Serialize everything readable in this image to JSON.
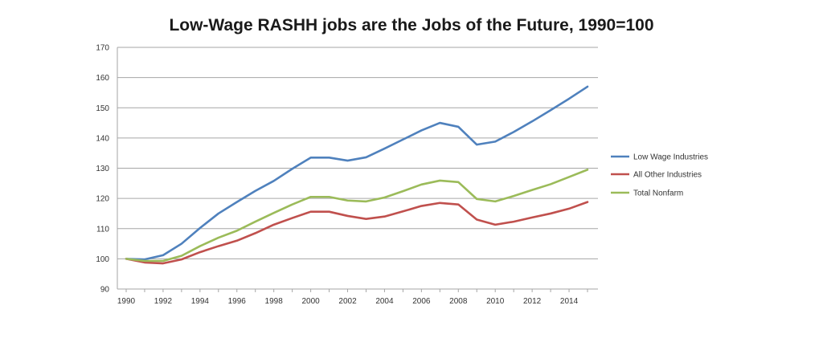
{
  "chart_data": {
    "type": "line",
    "title": "Low-Wage RASHH jobs are the Jobs of the Future, 1990=100",
    "xlabel": "",
    "ylabel": "",
    "ylim": [
      90,
      170
    ],
    "xlim": [
      1990,
      2015
    ],
    "y_ticks": [
      "90",
      "100",
      "110",
      "120",
      "130",
      "140",
      "150",
      "160",
      "170"
    ],
    "x_ticks": [
      "1990",
      "1992",
      "1994",
      "1996",
      "1998",
      "2000",
      "2002",
      "2004",
      "2006",
      "2008",
      "2010",
      "2012",
      "2014"
    ],
    "grid": "horizontal",
    "legend_position": "right",
    "x": [
      1990,
      1991,
      1992,
      1993,
      1994,
      1995,
      1996,
      1997,
      1998,
      1999,
      2000,
      2001,
      2002,
      2003,
      2004,
      2005,
      2006,
      2007,
      2008,
      2009,
      2010,
      2011,
      2012,
      2013,
      2014,
      2015
    ],
    "series": [
      {
        "name": "Low Wage Industries",
        "color": "#4f81bd",
        "values": [
          100,
          99.8,
          101.2,
          105,
          110.2,
          115,
          118.8,
          122.5,
          125.8,
          129.8,
          133.5,
          133.5,
          132.5,
          133.6,
          136.5,
          139.5,
          142.5,
          145,
          143.7,
          137.8,
          138.8,
          142,
          145.5,
          149.2,
          153,
          157
        ]
      },
      {
        "name": "All Other Industries",
        "color": "#c0504d",
        "values": [
          100,
          98.8,
          98.5,
          99.8,
          102.2,
          104.2,
          106,
          108.5,
          111.3,
          113.5,
          115.6,
          115.6,
          114.2,
          113.2,
          114,
          115.7,
          117.5,
          118.5,
          118,
          113,
          111.3,
          112.3,
          113.7,
          115,
          116.6,
          118.8
        ]
      },
      {
        "name": "Total Nonfarm",
        "color": "#9bbb59",
        "values": [
          100,
          99.3,
          99.3,
          101,
          104.2,
          107,
          109.3,
          112.3,
          115.2,
          118,
          120.5,
          120.5,
          119.3,
          119,
          120.3,
          122.4,
          124.6,
          125.9,
          125.4,
          119.8,
          119,
          120.8,
          122.8,
          124.7,
          127.1,
          129.5
        ]
      }
    ]
  }
}
